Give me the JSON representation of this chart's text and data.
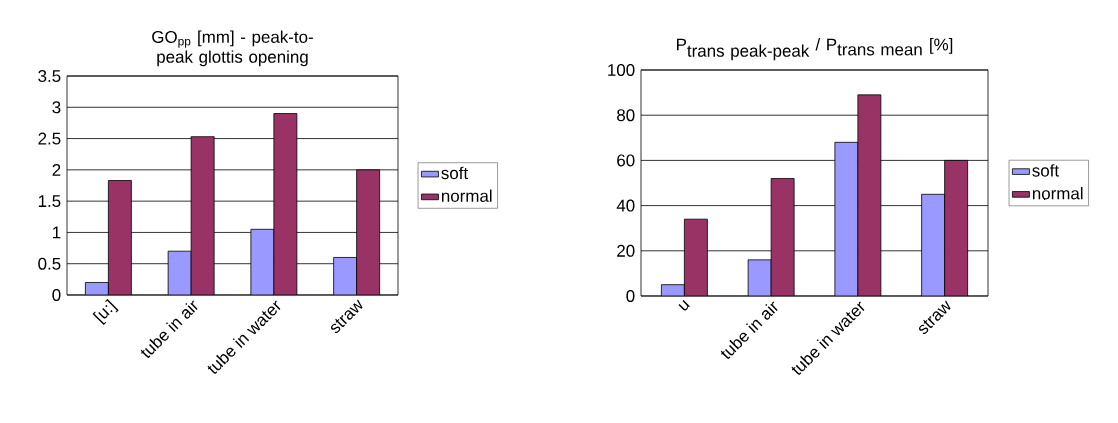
{
  "chart_data": [
    {
      "type": "bar",
      "title": "GO$_{pp}$ [mm]  - peak-to-peak glottis opening",
      "categories": [
        "[u:]",
        "tube in air",
        "tube in water",
        "straw"
      ],
      "series": [
        {
          "name": "soft",
          "color": "#9999ff",
          "values": [
            0.2,
            0.7,
            1.05,
            0.6
          ]
        },
        {
          "name": "normal",
          "color": "#993366",
          "values": [
            1.83,
            2.53,
            2.9,
            2.0
          ]
        }
      ],
      "ylim": [
        0,
        3.5
      ],
      "yticks": [
        0,
        0.5,
        1,
        1.5,
        2,
        2.5,
        3,
        3.5
      ],
      "grid": "y",
      "legend": "right"
    },
    {
      "type": "bar",
      "title": "\\mbox{P}_{\\mbox{trans peak-peak}}\\mbox{ / }\\mbox{P}_{\\mbox{trans mean}}\\mbox{ [\\%]}",
      "categories": [
        "u",
        "tube in air",
        "tube in water",
        "straw"
      ],
      "series": [
        {
          "name": "soft",
          "color": "#9999ff",
          "values": [
            5,
            16,
            68,
            45
          ]
        },
        {
          "name": "normal",
          "color": "#993366",
          "values": [
            34,
            52,
            89,
            60
          ]
        }
      ],
      "ylim": [
        0,
        100
      ],
      "yticks": [
        0,
        20,
        40,
        60,
        80,
        100
      ],
      "grid": "y",
      "legend": "right"
    }
  ]
}
